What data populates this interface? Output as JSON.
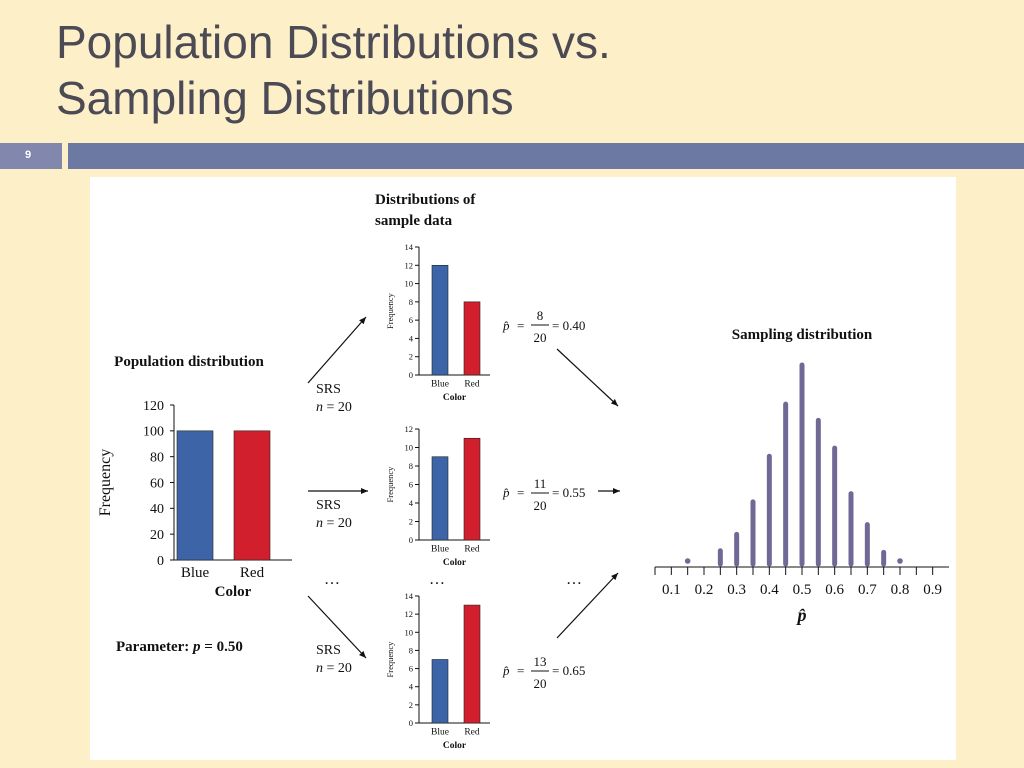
{
  "slide": {
    "title_line1": "Population Distributions vs.",
    "title_line2": "Sampling Distributions",
    "slide_number": "9"
  },
  "population": {
    "title": "Population distribution",
    "parameter_label": "Parameter:",
    "parameter_symbol": "p",
    "parameter_value": "= 0.50"
  },
  "srs": {
    "label": "SRS",
    "n_symbol": "n",
    "n_value": " = 20",
    "ellipsis": "…"
  },
  "samples": {
    "title_line1": "Distributions of",
    "title_line2": "sample data",
    "phat_symbol": "p̂",
    "formulas": [
      {
        "num": "8",
        "den": "20",
        "result": "= 0.40"
      },
      {
        "num": "11",
        "den": "20",
        "result": "= 0.55"
      },
      {
        "num": "13",
        "den": "20",
        "result": "= 0.65"
      }
    ]
  },
  "sampling": {
    "title": "Sampling distribution",
    "xlabel": "p̂"
  },
  "chart_data": [
    {
      "type": "bar",
      "title": "Population distribution",
      "categories": [
        "Blue",
        "Red"
      ],
      "values": [
        100,
        100
      ],
      "colors": [
        "#3c64a6",
        "#d11f2e"
      ],
      "xlabel": "Color",
      "ylabel": "Frequency",
      "yticks": [
        "0",
        "20",
        "40",
        "60",
        "80",
        "100",
        "120"
      ],
      "ylim": [
        0,
        120
      ]
    },
    {
      "type": "bar",
      "categories": [
        "Blue",
        "Red"
      ],
      "values": [
        12,
        8
      ],
      "colors": [
        "#3c64a6",
        "#d11f2e"
      ],
      "xlabel": "Color",
      "ylabel": "Frequency",
      "yticks": [
        "0",
        "2",
        "4",
        "6",
        "8",
        "10",
        "12",
        "14"
      ],
      "ylim": [
        0,
        14
      ]
    },
    {
      "type": "bar",
      "categories": [
        "Blue",
        "Red"
      ],
      "values": [
        9,
        11
      ],
      "colors": [
        "#3c64a6",
        "#d11f2e"
      ],
      "xlabel": "Color",
      "ylabel": "Frequency",
      "yticks": [
        "0",
        "2",
        "4",
        "6",
        "8",
        "10",
        "12"
      ],
      "ylim": [
        0,
        12
      ]
    },
    {
      "type": "bar",
      "categories": [
        "Blue",
        "Red"
      ],
      "values": [
        7,
        13
      ],
      "colors": [
        "#3c64a6",
        "#d11f2e"
      ],
      "xlabel": "Color",
      "ylabel": "Frequency",
      "yticks": [
        "0",
        "2",
        "4",
        "6",
        "8",
        "10",
        "12",
        "14"
      ],
      "ylim": [
        0,
        14
      ]
    },
    {
      "type": "bar",
      "title": "Sampling distribution",
      "x": [
        0.15,
        0.2,
        0.25,
        0.3,
        0.35,
        0.4,
        0.45,
        0.5,
        0.55,
        0.6,
        0.65,
        0.7,
        0.75,
        0.8
      ],
      "values": [
        0.3,
        0,
        1.0,
        2.0,
        4.0,
        6.8,
        10.0,
        12.4,
        9.0,
        7.3,
        4.5,
        2.6,
        0.9,
        0.3
      ],
      "xticks": [
        "0.1",
        "0.2",
        "0.3",
        "0.4",
        "0.5",
        "0.6",
        "0.7",
        "0.8",
        "0.9"
      ],
      "xlabel": "p̂",
      "color": "#6e6a95"
    }
  ]
}
